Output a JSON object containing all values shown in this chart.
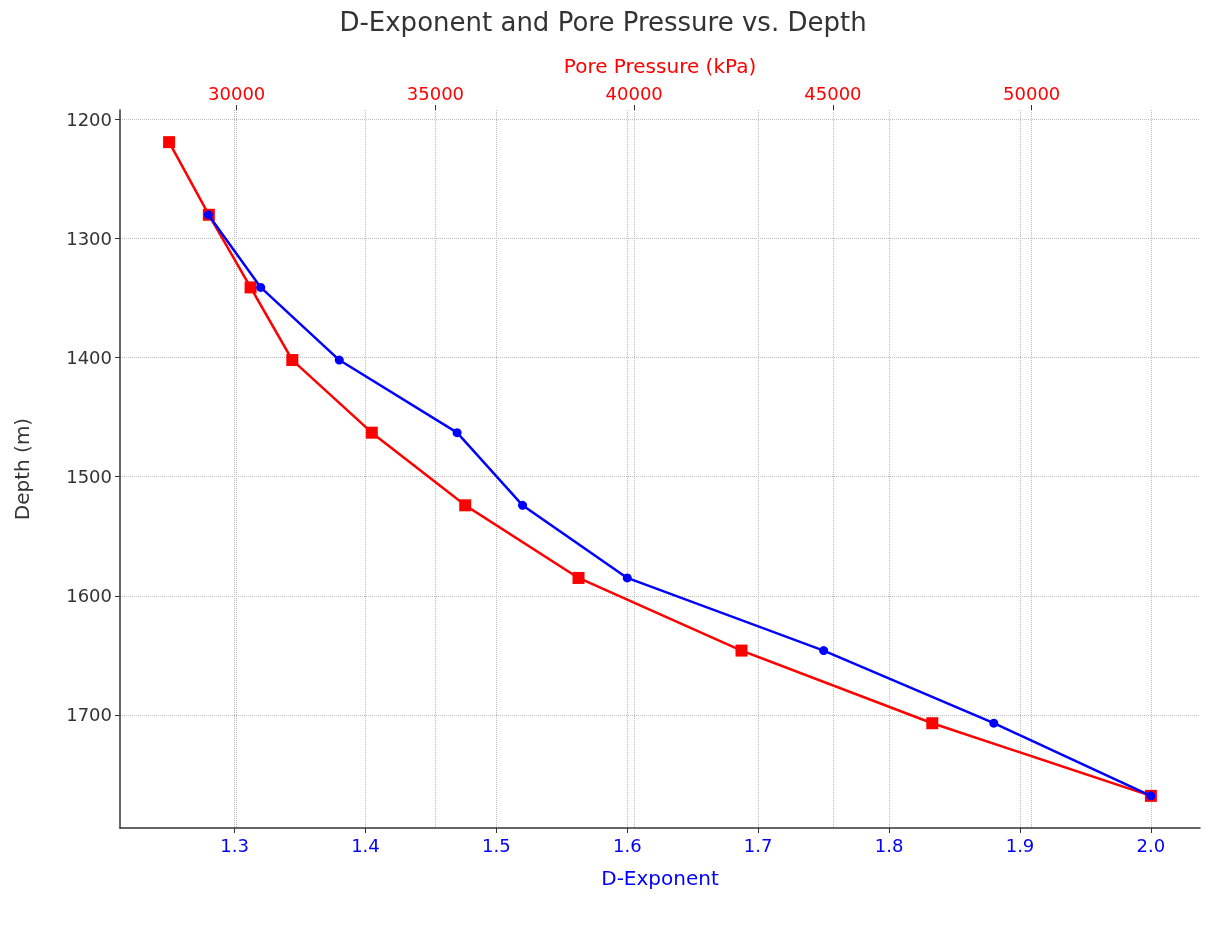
{
  "chart_data": {
    "type": "line",
    "title": "D-Exponent and Pore Pressure vs. Depth",
    "xlabel": "D-Exponent",
    "x2label": "Pore Pressure (kPa)",
    "ylabel": "Depth (m)",
    "xlim": [
      1.2125,
      2.0375
    ],
    "xticks": [
      1.3,
      1.4,
      1.5,
      1.6,
      1.7,
      1.8,
      1.9,
      {
        "value": 2.0,
        "label": "2.0"
      }
    ],
    "x2lim": [
      27065,
      54235
    ],
    "x2ticks": [
      30000,
      35000,
      40000,
      45000,
      50000
    ],
    "ylim": [
      1795,
      1192
    ],
    "yticks": [
      1200,
      1300,
      1400,
      1500,
      1600,
      1700
    ],
    "grid": true,
    "line_style": "solid",
    "series": [
      {
        "color": "#0000ff",
        "marker": "circle",
        "x": [
          1.28,
          1.32,
          1.38,
          1.47,
          1.52,
          1.6,
          1.75,
          1.88,
          2.0
        ],
        "values": [
          1280,
          1341,
          1402,
          1463,
          1524,
          1585,
          1646,
          1707,
          1768
        ]
      },
      {
        "color": "#ff0000",
        "marker": "square",
        "axis": "x2",
        "x": [
          28300,
          29300,
          30350,
          31400,
          33400,
          35750,
          38600,
          42700,
          47500,
          53000
        ],
        "values": [
          1219,
          1280,
          1341,
          1402,
          1463,
          1524,
          1585,
          1646,
          1707,
          1768
        ]
      }
    ]
  }
}
